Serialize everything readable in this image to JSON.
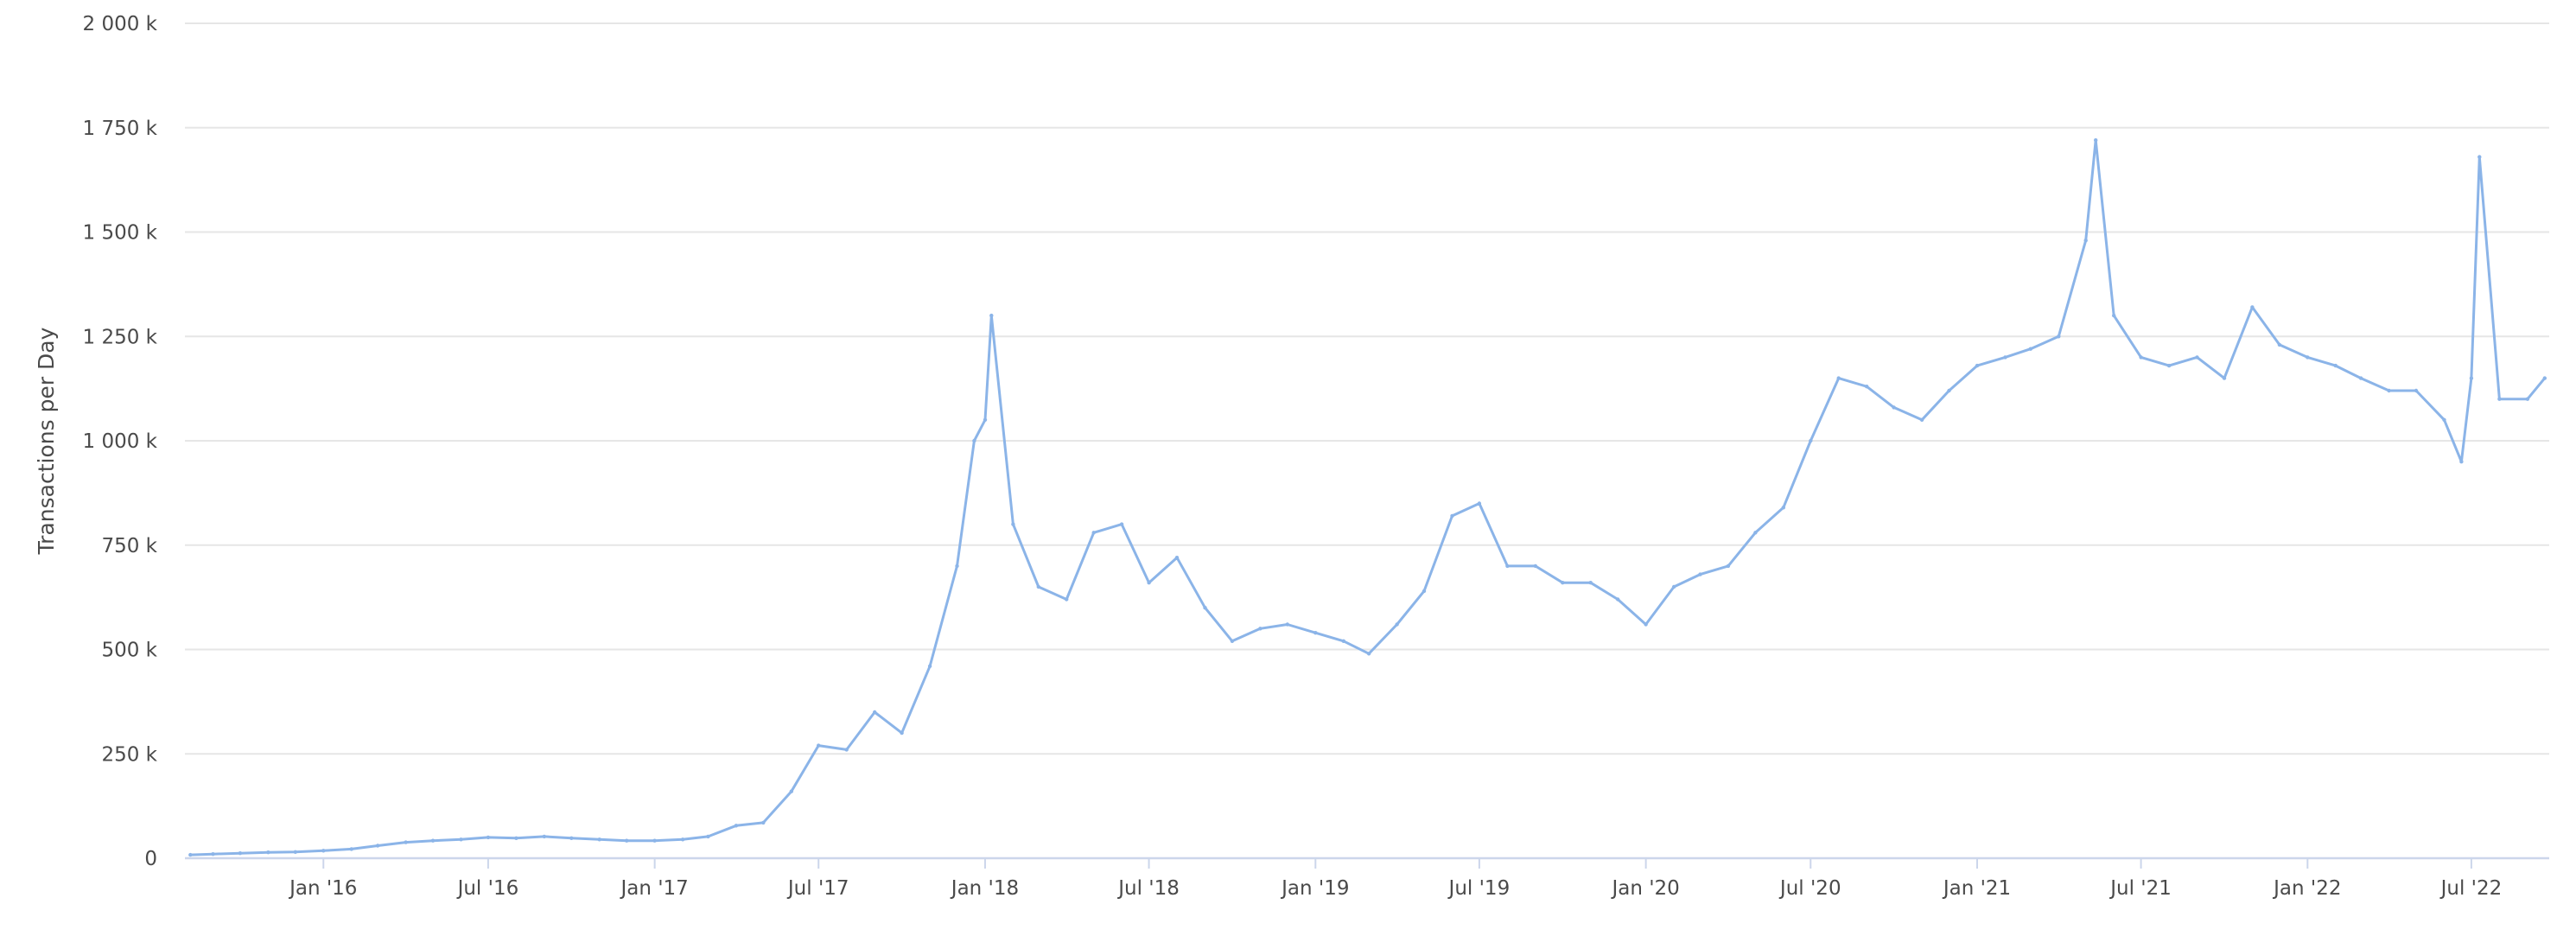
{
  "chart_data": {
    "type": "line",
    "title": "",
    "xlabel": "",
    "ylabel": "Transactions per Day",
    "ylim": [
      0,
      2000000
    ],
    "xlim": [
      "2015-08-01",
      "2022-09-25"
    ],
    "y_ticks": [
      {
        "value": 0,
        "label": "0"
      },
      {
        "value": 250000,
        "label": "250 k"
      },
      {
        "value": 500000,
        "label": "500 k"
      },
      {
        "value": 750000,
        "label": "750 k"
      },
      {
        "value": 1000000,
        "label": "1 000 k"
      },
      {
        "value": 1250000,
        "label": "1 250 k"
      },
      {
        "value": 1500000,
        "label": "1 500 k"
      },
      {
        "value": 1750000,
        "label": "1 750 k"
      },
      {
        "value": 2000000,
        "label": "2 000 k"
      }
    ],
    "x_ticks": [
      {
        "date": "2016-01-01",
        "label": "Jan '16"
      },
      {
        "date": "2016-07-01",
        "label": "Jul '16"
      },
      {
        "date": "2017-01-01",
        "label": "Jan '17"
      },
      {
        "date": "2017-07-01",
        "label": "Jul '17"
      },
      {
        "date": "2018-01-01",
        "label": "Jan '18"
      },
      {
        "date": "2018-07-01",
        "label": "Jul '18"
      },
      {
        "date": "2019-01-01",
        "label": "Jan '19"
      },
      {
        "date": "2019-07-01",
        "label": "Jul '19"
      },
      {
        "date": "2020-01-01",
        "label": "Jan '20"
      },
      {
        "date": "2020-07-01",
        "label": "Jul '20"
      },
      {
        "date": "2021-01-01",
        "label": "Jan '21"
      },
      {
        "date": "2021-07-01",
        "label": "Jul '21"
      },
      {
        "date": "2022-01-01",
        "label": "Jan '22"
      },
      {
        "date": "2022-07-01",
        "label": "Jul '22"
      }
    ],
    "grid": true,
    "legend": "none",
    "series": [
      {
        "color": "#8bb4e8",
        "points": [
          [
            "2015-08-07",
            8000
          ],
          [
            "2015-09-01",
            10000
          ],
          [
            "2015-10-01",
            12000
          ],
          [
            "2015-11-01",
            14000
          ],
          [
            "2015-12-01",
            15000
          ],
          [
            "2016-01-01",
            18000
          ],
          [
            "2016-02-01",
            22000
          ],
          [
            "2016-03-01",
            30000
          ],
          [
            "2016-04-01",
            38000
          ],
          [
            "2016-05-01",
            42000
          ],
          [
            "2016-06-01",
            45000
          ],
          [
            "2016-07-01",
            50000
          ],
          [
            "2016-08-01",
            48000
          ],
          [
            "2016-09-01",
            52000
          ],
          [
            "2016-10-01",
            48000
          ],
          [
            "2016-11-01",
            45000
          ],
          [
            "2016-12-01",
            42000
          ],
          [
            "2017-01-01",
            42000
          ],
          [
            "2017-02-01",
            45000
          ],
          [
            "2017-03-01",
            52000
          ],
          [
            "2017-04-01",
            78000
          ],
          [
            "2017-05-01",
            85000
          ],
          [
            "2017-06-01",
            160000
          ],
          [
            "2017-07-01",
            270000
          ],
          [
            "2017-08-01",
            260000
          ],
          [
            "2017-09-01",
            350000
          ],
          [
            "2017-10-01",
            300000
          ],
          [
            "2017-11-01",
            460000
          ],
          [
            "2017-12-01",
            700000
          ],
          [
            "2017-12-20",
            1000000
          ],
          [
            "2018-01-01",
            1050000
          ],
          [
            "2018-01-08",
            1300000
          ],
          [
            "2018-02-01",
            800000
          ],
          [
            "2018-03-01",
            650000
          ],
          [
            "2018-04-01",
            620000
          ],
          [
            "2018-05-01",
            780000
          ],
          [
            "2018-06-01",
            800000
          ],
          [
            "2018-07-01",
            660000
          ],
          [
            "2018-08-01",
            720000
          ],
          [
            "2018-09-01",
            600000
          ],
          [
            "2018-10-01",
            520000
          ],
          [
            "2018-11-01",
            550000
          ],
          [
            "2018-12-01",
            560000
          ],
          [
            "2019-01-01",
            540000
          ],
          [
            "2019-02-01",
            520000
          ],
          [
            "2019-03-01",
            490000
          ],
          [
            "2019-04-01",
            560000
          ],
          [
            "2019-05-01",
            640000
          ],
          [
            "2019-06-01",
            820000
          ],
          [
            "2019-07-01",
            850000
          ],
          [
            "2019-08-01",
            700000
          ],
          [
            "2019-09-01",
            700000
          ],
          [
            "2019-10-01",
            660000
          ],
          [
            "2019-11-01",
            660000
          ],
          [
            "2019-12-01",
            620000
          ],
          [
            "2020-01-01",
            560000
          ],
          [
            "2020-02-01",
            650000
          ],
          [
            "2020-03-01",
            680000
          ],
          [
            "2020-04-01",
            700000
          ],
          [
            "2020-05-01",
            780000
          ],
          [
            "2020-06-01",
            840000
          ],
          [
            "2020-07-01",
            1000000
          ],
          [
            "2020-08-01",
            1150000
          ],
          [
            "2020-09-01",
            1130000
          ],
          [
            "2020-10-01",
            1080000
          ],
          [
            "2020-11-01",
            1050000
          ],
          [
            "2020-12-01",
            1120000
          ],
          [
            "2021-01-01",
            1180000
          ],
          [
            "2021-02-01",
            1200000
          ],
          [
            "2021-03-01",
            1220000
          ],
          [
            "2021-04-01",
            1250000
          ],
          [
            "2021-05-01",
            1480000
          ],
          [
            "2021-05-12",
            1720000
          ],
          [
            "2021-06-01",
            1300000
          ],
          [
            "2021-07-01",
            1200000
          ],
          [
            "2021-08-01",
            1180000
          ],
          [
            "2021-09-01",
            1200000
          ],
          [
            "2021-10-01",
            1150000
          ],
          [
            "2021-11-01",
            1320000
          ],
          [
            "2021-12-01",
            1230000
          ],
          [
            "2022-01-01",
            1200000
          ],
          [
            "2022-02-01",
            1180000
          ],
          [
            "2022-03-01",
            1150000
          ],
          [
            "2022-04-01",
            1120000
          ],
          [
            "2022-05-01",
            1120000
          ],
          [
            "2022-06-01",
            1050000
          ],
          [
            "2022-06-20",
            950000
          ],
          [
            "2022-07-01",
            1150000
          ],
          [
            "2022-07-10",
            1680000
          ],
          [
            "2022-08-01",
            1100000
          ],
          [
            "2022-09-01",
            1100000
          ],
          [
            "2022-09-20",
            1150000
          ]
        ]
      }
    ]
  }
}
